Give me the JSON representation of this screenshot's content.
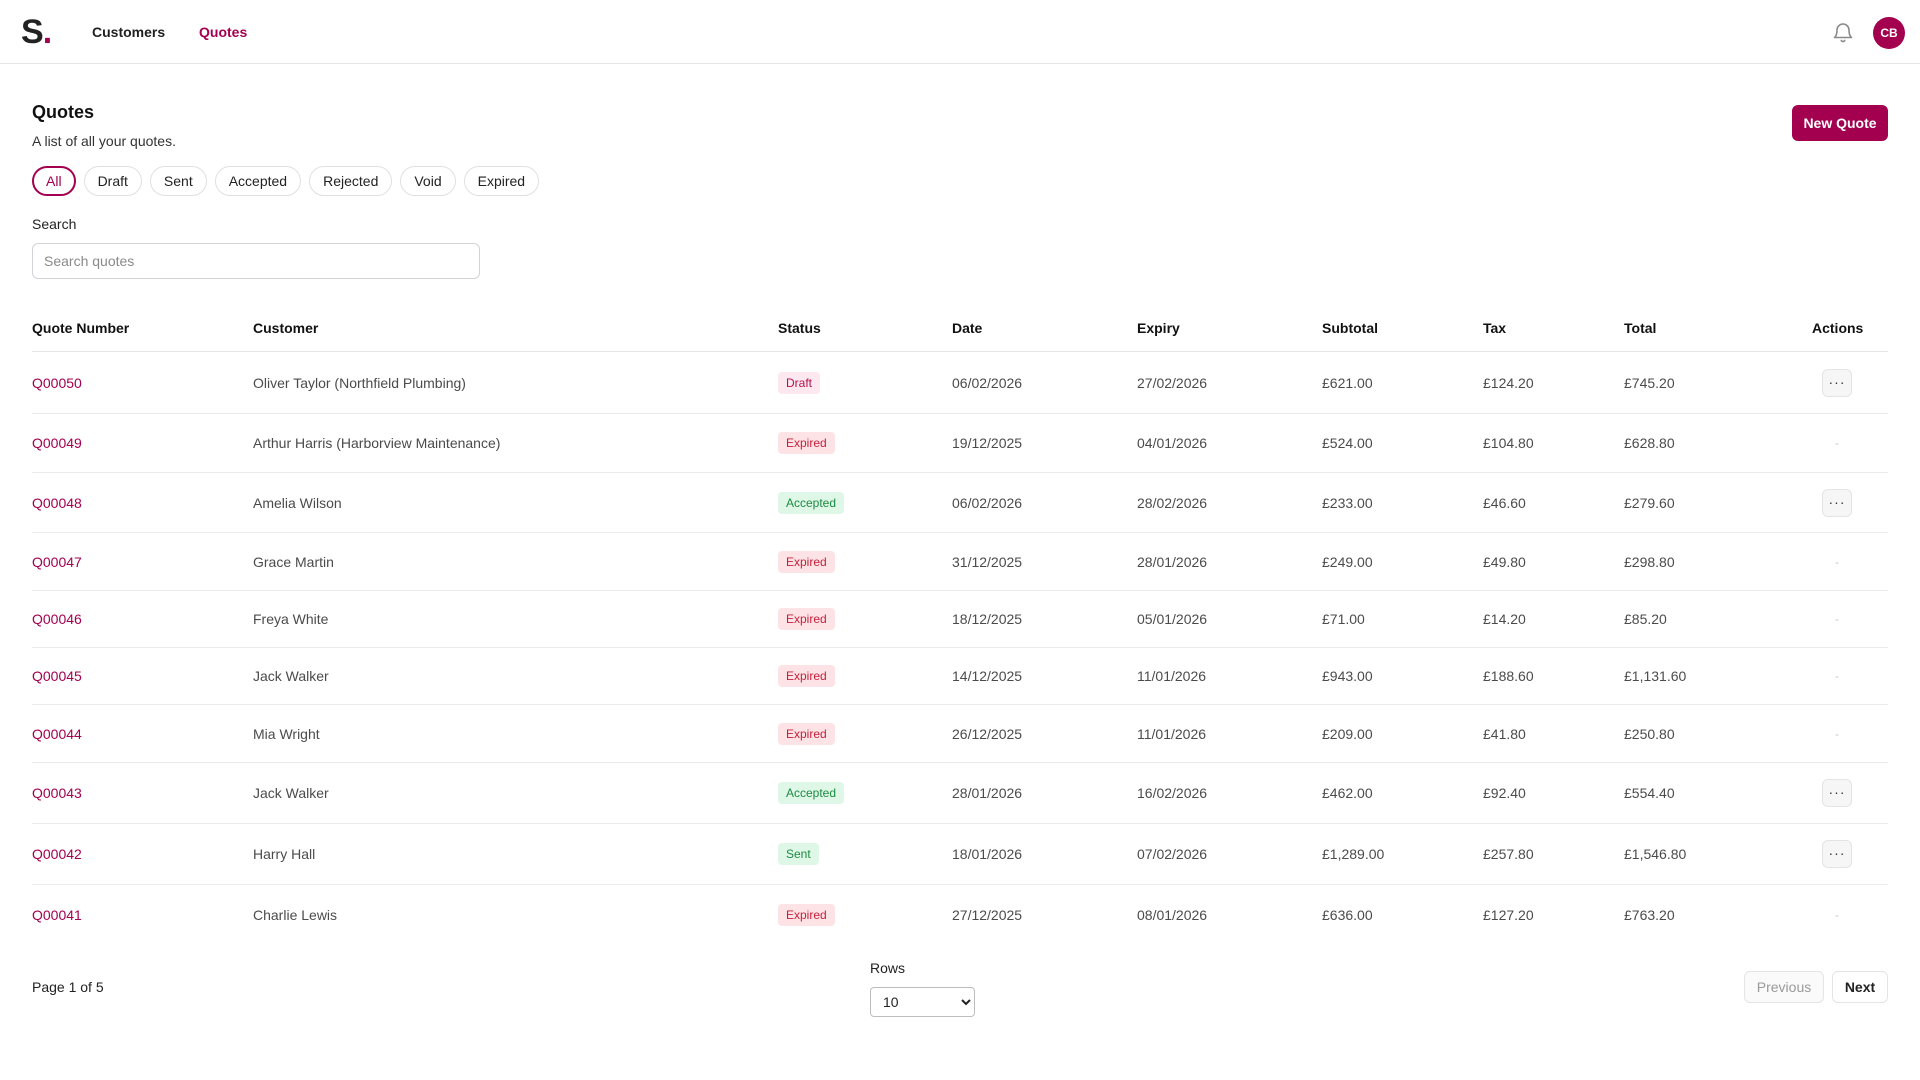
{
  "nav": {
    "logo_letter": "S",
    "logo_dot": ".",
    "links": [
      "Customers",
      "Quotes"
    ],
    "active": "Quotes",
    "avatar_initials": "CB"
  },
  "header": {
    "title": "Quotes",
    "subtitle": "A list of all your quotes.",
    "new_quote_label": "New Quote"
  },
  "filters": [
    "All",
    "Draft",
    "Sent",
    "Accepted",
    "Rejected",
    "Void",
    "Expired"
  ],
  "active_filter": "All",
  "search": {
    "label": "Search",
    "placeholder": "Search quotes",
    "value": ""
  },
  "table": {
    "columns": [
      "Quote Number",
      "Customer",
      "Status",
      "Date",
      "Expiry",
      "Subtotal",
      "Tax",
      "Total",
      "Actions"
    ],
    "rows": [
      {
        "number": "Q00050",
        "customer": "Oliver Taylor (Northfield Plumbing)",
        "status": "Draft",
        "date": "06/02/2026",
        "expiry": "27/02/2026",
        "subtotal": "£621.00",
        "tax": "£124.20",
        "total": "£745.20",
        "action": "···"
      },
      {
        "number": "Q00049",
        "customer": "Arthur Harris (Harborview Maintenance)",
        "status": "Expired",
        "date": "19/12/2025",
        "expiry": "04/01/2026",
        "subtotal": "£524.00",
        "tax": "£104.80",
        "total": "£628.80",
        "action": "-"
      },
      {
        "number": "Q00048",
        "customer": "Amelia Wilson",
        "status": "Accepted",
        "date": "06/02/2026",
        "expiry": "28/02/2026",
        "subtotal": "£233.00",
        "tax": "£46.60",
        "total": "£279.60",
        "action": "···"
      },
      {
        "number": "Q00047",
        "customer": "Grace Martin",
        "status": "Expired",
        "date": "31/12/2025",
        "expiry": "28/01/2026",
        "subtotal": "£249.00",
        "tax": "£49.80",
        "total": "£298.80",
        "action": "-"
      },
      {
        "number": "Q00046",
        "customer": "Freya White",
        "status": "Expired",
        "date": "18/12/2025",
        "expiry": "05/01/2026",
        "subtotal": "£71.00",
        "tax": "£14.20",
        "total": "£85.20",
        "action": "-"
      },
      {
        "number": "Q00045",
        "customer": "Jack Walker",
        "status": "Expired",
        "date": "14/12/2025",
        "expiry": "11/01/2026",
        "subtotal": "£943.00",
        "tax": "£188.60",
        "total": "£1,131.60",
        "action": "-"
      },
      {
        "number": "Q00044",
        "customer": "Mia Wright",
        "status": "Expired",
        "date": "26/12/2025",
        "expiry": "11/01/2026",
        "subtotal": "£209.00",
        "tax": "£41.80",
        "total": "£250.80",
        "action": "-"
      },
      {
        "number": "Q00043",
        "customer": "Jack Walker",
        "status": "Accepted",
        "date": "28/01/2026",
        "expiry": "16/02/2026",
        "subtotal": "£462.00",
        "tax": "£92.40",
        "total": "£554.40",
        "action": "···"
      },
      {
        "number": "Q00042",
        "customer": "Harry Hall",
        "status": "Sent",
        "date": "18/01/2026",
        "expiry": "07/02/2026",
        "subtotal": "£1,289.00",
        "tax": "£257.80",
        "total": "£1,546.80",
        "action": "···"
      },
      {
        "number": "Q00041",
        "customer": "Charlie Lewis",
        "status": "Expired",
        "date": "27/12/2025",
        "expiry": "08/01/2026",
        "subtotal": "£636.00",
        "tax": "£127.20",
        "total": "£763.20",
        "action": "-"
      }
    ]
  },
  "pagination": {
    "page_info": "Page 1 of 5",
    "rows_label": "Rows",
    "rows_value": "10",
    "previous_label": "Previous",
    "next_label": "Next"
  },
  "colors": {
    "brand": "#a3004f",
    "expired_bg": "#fde3e6",
    "accepted_bg": "#dff7e6",
    "draft_bg": "#fde8ef"
  },
  "icons": [
    "bell-icon",
    "more-horizontal-icon",
    "chevron-down-icon"
  ]
}
